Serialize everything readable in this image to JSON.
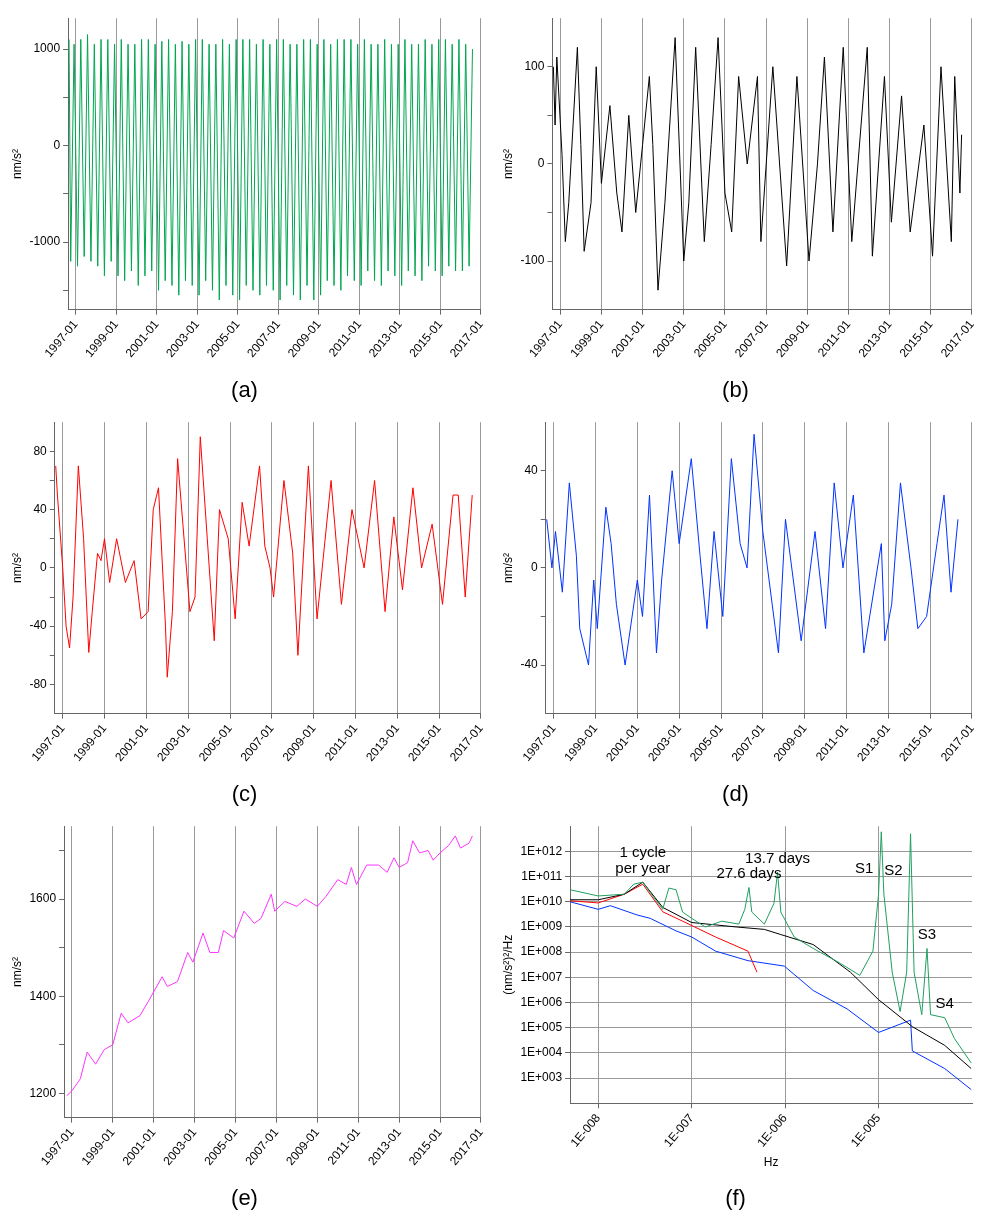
{
  "chart_data": [
    {
      "type": "line",
      "title": "(a)",
      "ylabel": "nm/s²",
      "grid": "x",
      "xlim": [
        "1996-08-15",
        "2017-01"
      ],
      "xticks": [
        "1997-01",
        "1999-01",
        "2001-01",
        "2003-01",
        "2005-01",
        "2007-01",
        "2009-01",
        "2011-01",
        "2013-01",
        "2015-01",
        "2017-01"
      ],
      "ylim": [
        -1700,
        1320
      ],
      "yticks": [
        {
          "value": -1500,
          "label": null
        },
        -1000,
        {
          "value": -500,
          "label": null
        },
        0,
        {
          "value": 500,
          "label": null
        },
        1000
      ],
      "x": [
        "1996-09",
        "1996-10",
        "1996-12",
        "1997-02",
        "1997-04",
        "1997-06",
        "1997-08",
        "1997-10",
        "1997-12",
        "1998-02",
        "1998-04",
        "1998-06",
        "1998-08",
        "1998-10",
        "1998-12",
        "1999-02",
        "1999-04",
        "1999-06",
        "1999-08",
        "1999-10",
        "1999-12",
        "2000-02",
        "2000-04",
        "2000-06",
        "2000-08",
        "2000-10",
        "2000-12",
        "2001-02",
        "2001-04",
        "2001-06",
        "2001-08",
        "2001-10",
        "2001-12",
        "2002-02",
        "2002-04",
        "2002-06",
        "2002-08",
        "2002-10",
        "2002-12",
        "2003-02",
        "2003-04",
        "2003-06",
        "2003-08",
        "2003-10",
        "2003-12",
        "2004-02",
        "2004-04",
        "2004-06",
        "2004-08",
        "2004-10",
        "2004-12",
        "2005-02",
        "2005-04",
        "2005-06",
        "2005-08",
        "2005-10",
        "2005-12",
        "2006-02",
        "2006-04",
        "2006-06",
        "2006-08",
        "2006-10",
        "2006-12",
        "2007-02",
        "2007-04",
        "2007-06",
        "2007-08",
        "2007-10",
        "2007-12",
        "2008-02",
        "2008-04",
        "2008-06",
        "2008-08",
        "2008-10",
        "2008-12",
        "2009-02",
        "2009-04",
        "2009-06",
        "2009-08",
        "2009-10",
        "2009-12",
        "2010-02",
        "2010-04",
        "2010-06",
        "2010-08",
        "2010-10",
        "2010-12",
        "2011-02",
        "2011-04",
        "2011-06",
        "2011-08",
        "2011-10",
        "2011-12",
        "2012-02",
        "2012-04",
        "2012-06",
        "2012-08",
        "2012-10",
        "2012-12",
        "2013-02",
        "2013-04",
        "2013-06",
        "2013-08",
        "2013-10",
        "2013-12",
        "2014-02",
        "2014-04",
        "2014-06",
        "2014-08",
        "2014-10",
        "2014-12",
        "2015-02",
        "2015-04",
        "2015-06",
        "2015-08",
        "2015-10",
        "2015-12",
        "2016-02",
        "2016-04",
        "2016-06",
        "2016-08"
      ],
      "series": [
        {
          "color": "#00a651",
          "values": [
            1100,
            -1200,
            1050,
            -1250,
            1100,
            -1150,
            1150,
            -1200,
            1050,
            -1250,
            1100,
            -1350,
            1100,
            -1200,
            1050,
            -1350,
            1100,
            -1400,
            1050,
            -1300,
            1050,
            -1450,
            1100,
            -1350,
            1100,
            -1300,
            1050,
            -1500,
            1080,
            -1400,
            1100,
            -1450,
            1050,
            -1550,
            1080,
            -1400,
            1050,
            -1450,
            1100,
            -1550,
            1100,
            -1400,
            1050,
            -1500,
            1050,
            -1600,
            1100,
            -1450,
            1050,
            -1550,
            1100,
            -1600,
            1100,
            -1450,
            1100,
            -1500,
            1050,
            -1550,
            1100,
            -1450,
            1050,
            -1500,
            1100,
            -1600,
            1100,
            -1450,
            1050,
            -1550,
            1050,
            -1600,
            1100,
            -1450,
            1100,
            -1600,
            1050,
            -1550,
            1100,
            -1400,
            1050,
            -1450,
            1100,
            -1500,
            1100,
            -1350,
            1100,
            -1400,
            1050,
            -1450,
            1100,
            -1300,
            1050,
            -1400,
            1050,
            -1450,
            1100,
            -1300,
            1050,
            -1350,
            1050,
            -1450,
            1100,
            -1300,
            1050,
            -1350,
            1050,
            -1400,
            1100,
            -1250,
            1050,
            -1300,
            1100,
            -1350,
            1100,
            -1250,
            1050,
            -1300,
            1100,
            -1300,
            1050,
            -1250,
            1000
          ]
        }
      ]
    },
    {
      "type": "line",
      "title": "(b)",
      "ylabel": "nm/s²",
      "grid": "x",
      "xlim": [
        "1996-08-15",
        "2017-01"
      ],
      "xticks": [
        "1997-01",
        "1999-01",
        "2001-01",
        "2003-01",
        "2005-01",
        "2007-01",
        "2009-01",
        "2011-01",
        "2013-01",
        "2015-01",
        "2017-01"
      ],
      "ylim": [
        -150,
        150
      ],
      "yticks": [
        -100,
        {
          "value": -50,
          "label": null
        },
        0,
        {
          "value": 50,
          "label": null
        },
        100
      ],
      "x": [
        "1996-09",
        "1996-10",
        "1996-11",
        "1997-02",
        "1997-04",
        "1997-06",
        "1997-11",
        "1998-01",
        "1998-03",
        "1998-07",
        "1998-10",
        "1999-01",
        "1999-06",
        "1999-10",
        "2000-01",
        "2000-05",
        "2000-09",
        "2001-01",
        "2001-05",
        "2001-07",
        "2001-10",
        "2002-02",
        "2002-08",
        "2003-01",
        "2003-04",
        "2003-08",
        "2004-01",
        "2004-05",
        "2004-09",
        "2005-01",
        "2005-05",
        "2005-09",
        "2006-02",
        "2006-08",
        "2006-10",
        "2007-05",
        "2008-01",
        "2008-07",
        "2009-02",
        "2009-07",
        "2009-11",
        "2010-04",
        "2010-10",
        "2011-03",
        "2011-12",
        "2012-03",
        "2012-10",
        "2013-02",
        "2013-08",
        "2014-01",
        "2014-09",
        "2015-02",
        "2015-07",
        "2016-01",
        "2016-03",
        "2016-06",
        "2016-07"
      ],
      "series": [
        {
          "color": "#000000",
          "values": [
            100,
            40,
            110,
            10,
            -80,
            -40,
            120,
            20,
            -90,
            -40,
            100,
            -20,
            60,
            -30,
            -70,
            50,
            -50,
            20,
            90,
            20,
            -130,
            -40,
            130,
            -100,
            -40,
            120,
            -80,
            20,
            130,
            -30,
            -70,
            90,
            0,
            90,
            -80,
            100,
            -105,
            90,
            -100,
            0,
            110,
            -70,
            120,
            -80,
            120,
            -95,
            90,
            -60,
            70,
            -70,
            40,
            -95,
            100,
            -80,
            90,
            -30,
            30
          ]
        }
      ]
    },
    {
      "type": "line",
      "title": "(c)",
      "ylabel": "nm/s²",
      "grid": "x",
      "xlim": [
        "1996-08-15",
        "2017-01"
      ],
      "xticks": [
        "1997-01",
        "1999-01",
        "2001-01",
        "2003-01",
        "2005-01",
        "2007-01",
        "2009-01",
        "2011-01",
        "2013-01",
        "2015-01",
        "2017-01"
      ],
      "ylim": [
        -100,
        100
      ],
      "yticks": [
        -80,
        {
          "value": -60,
          "label": null
        },
        -40,
        {
          "value": -20,
          "label": null
        },
        0,
        {
          "value": 20,
          "label": null
        },
        40,
        {
          "value": 60,
          "label": null
        },
        80
      ],
      "x": [
        "1996-09",
        "1996-10",
        "1997-01",
        "1997-03",
        "1997-05",
        "1997-07",
        "1997-10",
        "1998-01",
        "1998-04",
        "1998-06",
        "1998-09",
        "1998-11",
        "1999-01",
        "1999-04",
        "1999-08",
        "2000-01",
        "2000-06",
        "2000-10",
        "2001-02",
        "2001-05",
        "2001-08",
        "2001-12",
        "2002-01",
        "2002-04",
        "2002-07",
        "2002-10",
        "2003-02",
        "2003-05",
        "2003-08",
        "2003-12",
        "2004-04",
        "2004-07",
        "2004-12",
        "2005-04",
        "2005-08",
        "2005-12",
        "2006-06",
        "2006-09",
        "2006-12",
        "2007-02",
        "2007-08",
        "2008-01",
        "2008-04",
        "2008-10",
        "2009-03",
        "2009-11",
        "2010-05",
        "2010-11",
        "2011-06",
        "2011-12",
        "2012-06",
        "2012-11",
        "2013-04",
        "2013-10",
        "2014-03",
        "2014-09",
        "2015-03",
        "2015-09",
        "2015-12",
        "2016-04",
        "2016-08"
      ],
      "series": [
        {
          "color": "#ff0000",
          "values": [
            70,
            50,
            0,
            -40,
            -55,
            -20,
            70,
            20,
            -58,
            -30,
            10,
            5,
            20,
            -10,
            20,
            -10,
            5,
            -35,
            -30,
            40,
            55,
            -40,
            -75,
            -30,
            75,
            30,
            -30,
            -20,
            90,
            20,
            -50,
            40,
            20,
            -35,
            45,
            15,
            70,
            15,
            0,
            -20,
            60,
            10,
            -60,
            70,
            -35,
            60,
            -25,
            40,
            0,
            60,
            -30,
            35,
            -15,
            55,
            0,
            30,
            -25,
            50,
            50,
            -20,
            50
          ]
        }
      ]
    },
    {
      "type": "line",
      "title": "(d)",
      "ylabel": "nm/s²",
      "grid": "x",
      "xlim": [
        "1996-08-15",
        "2017-01"
      ],
      "xticks": [
        "1997-01",
        "1999-01",
        "2001-01",
        "2003-01",
        "2005-01",
        "2007-01",
        "2009-01",
        "2011-01",
        "2013-01",
        "2015-01",
        "2017-01"
      ],
      "ylim": [
        -60,
        60
      ],
      "yticks": [
        -40,
        {
          "value": -20,
          "label": null
        },
        0,
        {
          "value": 20,
          "label": null
        },
        40
      ],
      "x": [
        "1996-09",
        "1996-12",
        "1997-02",
        "1997-06",
        "1997-10",
        "1998-02",
        "1998-04",
        "1998-09",
        "1998-12",
        "1999-02",
        "1999-07",
        "1999-10",
        "2000-01",
        "2000-06",
        "2001-01",
        "2001-04",
        "2001-08",
        "2001-12",
        "2002-03",
        "2002-09",
        "2003-01",
        "2003-08",
        "2004-01",
        "2004-05",
        "2004-09",
        "2005-02",
        "2005-07",
        "2005-12",
        "2006-04",
        "2006-08",
        "2007-01",
        "2007-10",
        "2008-02",
        "2008-11",
        "2009-07",
        "2010-01",
        "2010-06",
        "2010-11",
        "2011-05",
        "2011-11",
        "2012-09",
        "2012-11",
        "2013-03",
        "2013-08",
        "2014-02",
        "2014-06",
        "2014-11",
        "2015-05",
        "2015-09",
        "2016-01",
        "2016-05"
      ],
      "series": [
        {
          "color": "#0033ff",
          "values": [
            20,
            0,
            15,
            -10,
            35,
            5,
            -25,
            -40,
            -5,
            -25,
            25,
            10,
            -15,
            -40,
            -5,
            -20,
            30,
            -35,
            -5,
            40,
            10,
            45,
            5,
            -25,
            15,
            -20,
            45,
            10,
            0,
            55,
            15,
            -35,
            20,
            -30,
            15,
            -25,
            35,
            0,
            30,
            -35,
            10,
            -30,
            -15,
            35,
            0,
            -25,
            -20,
            10,
            30,
            -10,
            20
          ]
        }
      ]
    },
    {
      "type": "line",
      "title": "(e)",
      "ylabel": "nm/s²",
      "grid": "x",
      "xlim": [
        "1996-08-15",
        "2017-01"
      ],
      "xticks": [
        "1997-01",
        "1999-01",
        "2001-01",
        "2003-01",
        "2005-01",
        "2007-01",
        "2009-01",
        "2011-01",
        "2013-01",
        "2015-01",
        "2017-01"
      ],
      "ylim": [
        1150,
        1750
      ],
      "yticks": [
        1200,
        {
          "value": 1300,
          "label": null
        },
        1400,
        {
          "value": 1500,
          "label": null
        },
        1600,
        {
          "value": 1700,
          "label": null
        }
      ],
      "x": [
        "1996-10",
        "1997-01",
        "1997-06",
        "1997-10",
        "1998-03",
        "1998-08",
        "1999-01",
        "1999-06",
        "1999-10",
        "2000-05",
        "2000-10",
        "2001-06",
        "2001-09",
        "2002-03",
        "2002-09",
        "2002-12",
        "2003-06",
        "2003-10",
        "2004-03",
        "2004-06",
        "2004-12",
        "2005-06",
        "2005-12",
        "2006-04",
        "2006-10",
        "2006-12",
        "2007-06",
        "2008-01",
        "2008-06",
        "2009-01",
        "2009-06",
        "2010-01",
        "2010-06",
        "2010-09",
        "2010-12",
        "2011-06",
        "2012-01",
        "2012-06",
        "2012-10",
        "2013-01",
        "2013-06",
        "2013-09",
        "2014-01",
        "2014-06",
        "2014-09",
        "2015-01",
        "2015-06",
        "2015-10",
        "2016-01",
        "2016-06",
        "2016-08"
      ],
      "series": [
        {
          "color": "#ff33ff",
          "values": [
            1195,
            1205,
            1230,
            1285,
            1260,
            1290,
            1300,
            1365,
            1345,
            1360,
            1390,
            1440,
            1420,
            1430,
            1490,
            1470,
            1530,
            1490,
            1490,
            1535,
            1520,
            1575,
            1550,
            1560,
            1610,
            1575,
            1595,
            1585,
            1600,
            1585,
            1605,
            1640,
            1630,
            1665,
            1630,
            1670,
            1670,
            1655,
            1685,
            1665,
            1675,
            1720,
            1695,
            1700,
            1680,
            1695,
            1710,
            1730,
            1705,
            1715,
            1730
          ]
        }
      ]
    },
    {
      "type": "line",
      "title": "(f)",
      "xlabel": "Hz",
      "ylabel": "(nm/s²)²/Hz",
      "grid": true,
      "log": "xy",
      "xlim": [
        5e-09,
        0.0001
      ],
      "xticks": [
        {
          "value": 1e-08,
          "label": "1E-008"
        },
        {
          "value": 1e-07,
          "label": "1E-007"
        },
        {
          "value": 1e-06,
          "label": "1E-006"
        },
        {
          "value": 1e-05,
          "label": "1E-005"
        }
      ],
      "ylim": [
        100,
        10000000000000.0
      ],
      "yticks": [
        {
          "value": 1000.0,
          "label": "1E+003"
        },
        {
          "value": 10000.0,
          "label": "1E+004"
        },
        {
          "value": 100000.0,
          "label": "1E+005"
        },
        {
          "value": 1000000.0,
          "label": "1E+006"
        },
        {
          "value": 10000000.0,
          "label": "1E+007"
        },
        {
          "value": 100000000.0,
          "label": "1E+008"
        },
        {
          "value": 1000000000.0,
          "label": "1E+009"
        },
        {
          "value": 10000000000.0,
          "label": "1E+010"
        },
        {
          "value": 100000000000.0,
          "label": "1E+011"
        },
        {
          "value": 1000000000000.0,
          "label": "1E+012"
        }
      ],
      "annotations": [
        {
          "text": "1 cycle\nper year",
          "x": 3e-08,
          "y": 60000000000.0
        },
        {
          "text": "27.6 days",
          "x": 4.1e-07,
          "y": 37000000000.0
        },
        {
          "text": "13.7 days",
          "x": 8.3e-07,
          "y": 150000000000.0
        },
        {
          "text": "S1",
          "x": 1.07e-05,
          "y": 6000000000000.0
        },
        {
          "text": "S2",
          "x": 2.2e-05,
          "y": 5000000000000.0
        },
        {
          "text": "S3",
          "x": 3.3e-05,
          "y": 140000000.0
        },
        {
          "text": "S4",
          "x": 5.1e-05,
          "y": 250000.0
        }
      ],
      "series": [
        {
          "color": "#1fa060",
          "x": [
            5e-09,
            1e-08,
            1.9e-08,
            2.4e-08,
            3e-08,
            3.7e-08,
            4.9e-08,
            5.7e-08,
            6.8e-08,
            8e-08,
            1e-07,
            1.4e-07,
            2.1e-07,
            3.2e-07,
            3.7e-07,
            4.1e-07,
            4.4e-07,
            6e-07,
            7.6e-07,
            8.3e-07,
            9e-07,
            1.25e-06,
            2e-06,
            3.9e-06,
            6.3e-06,
            8.7e-06,
            1e-05,
            1.07e-05,
            1.14e-05,
            1.4e-05,
            1.7e-05,
            2e-05,
            2.2e-05,
            2.4e-05,
            2.9e-05,
            3.3e-05,
            3.6e-05,
            5.1e-05,
            6.5e-05,
            9.8e-05
          ],
          "values": [
            30000000000.0,
            17000000000.0,
            20000000000.0,
            50000000000.0,
            60000000000.0,
            20000000000.0,
            5000000000.0,
            35000000000.0,
            30000000000.0,
            3900000000.0,
            2200000000.0,
            1000000000.0,
            1700000000.0,
            1300000000.0,
            5000000000.0,
            37000000000.0,
            3900000000.0,
            1300000000.0,
            8700000000.0,
            150000000000.0,
            3900000000.0,
            400000000.0,
            140000000.0,
            36000000.0,
            12000000.0,
            110000000.0,
            20000000000.0,
            6000000000000.0,
            20000000000.0,
            16000000.0,
            440000.0,
            16000000.0,
            5000000000000.0,
            16000000.0,
            330000.0,
            140000000.0,
            330000.0,
            250000.0,
            37000.0,
            4000.0
          ]
        },
        {
          "color": "#000000",
          "x": [
            5e-09,
            1e-08,
            1.9e-08,
            3e-08,
            4.9e-08,
            1e-07,
            3e-07,
            6e-07,
            9e-07,
            2e-06,
            5e-06,
            1e-05,
            2.3e-05,
            5.1e-05,
            9.8e-05
          ],
          "values": [
            12000000000.0,
            12000000000.0,
            20000000000.0,
            60000000000.0,
            6000000000.0,
            1500000000.0,
            1000000000.0,
            800000000.0,
            500000000.0,
            200000000.0,
            16000000.0,
            1300000.0,
            110000.0,
            20000.0,
            2400.0
          ]
        },
        {
          "color": "#ff0000",
          "x": [
            5e-09,
            1e-08,
            1.9e-08,
            3e-08,
            4.9e-08,
            8e-08,
            1.8e-07,
            4e-07,
            5e-07
          ],
          "values": [
            11000000000.0,
            9000000000.0,
            20000000000.0,
            50000000000.0,
            4000000000.0,
            1700000000.0,
            400000000.0,
            110000000.0,
            16000000.0
          ]
        },
        {
          "color": "#0033ff",
          "x": [
            5e-09,
            1e-08,
            1.35e-08,
            2.6e-08,
            3.6e-08,
            6.8e-08,
            1e-07,
            1.8e-07,
            4e-07,
            9.8e-07,
            2e-06,
            4.6e-06,
            1e-05,
            2.2e-05,
            2.3e-05,
            5.1e-05,
            9.8e-05
          ],
          "values": [
            10000000000.0,
            5000000000.0,
            7000000000.0,
            3000000000.0,
            2200000000.0,
            700000000.0,
            400000000.0,
            110000000.0,
            46000000.0,
            28000000.0,
            3000000.0,
            560000.0,
            65000.0,
            200000.0,
            12000.0,
            2400.0,
            350.0
          ]
        }
      ]
    }
  ]
}
